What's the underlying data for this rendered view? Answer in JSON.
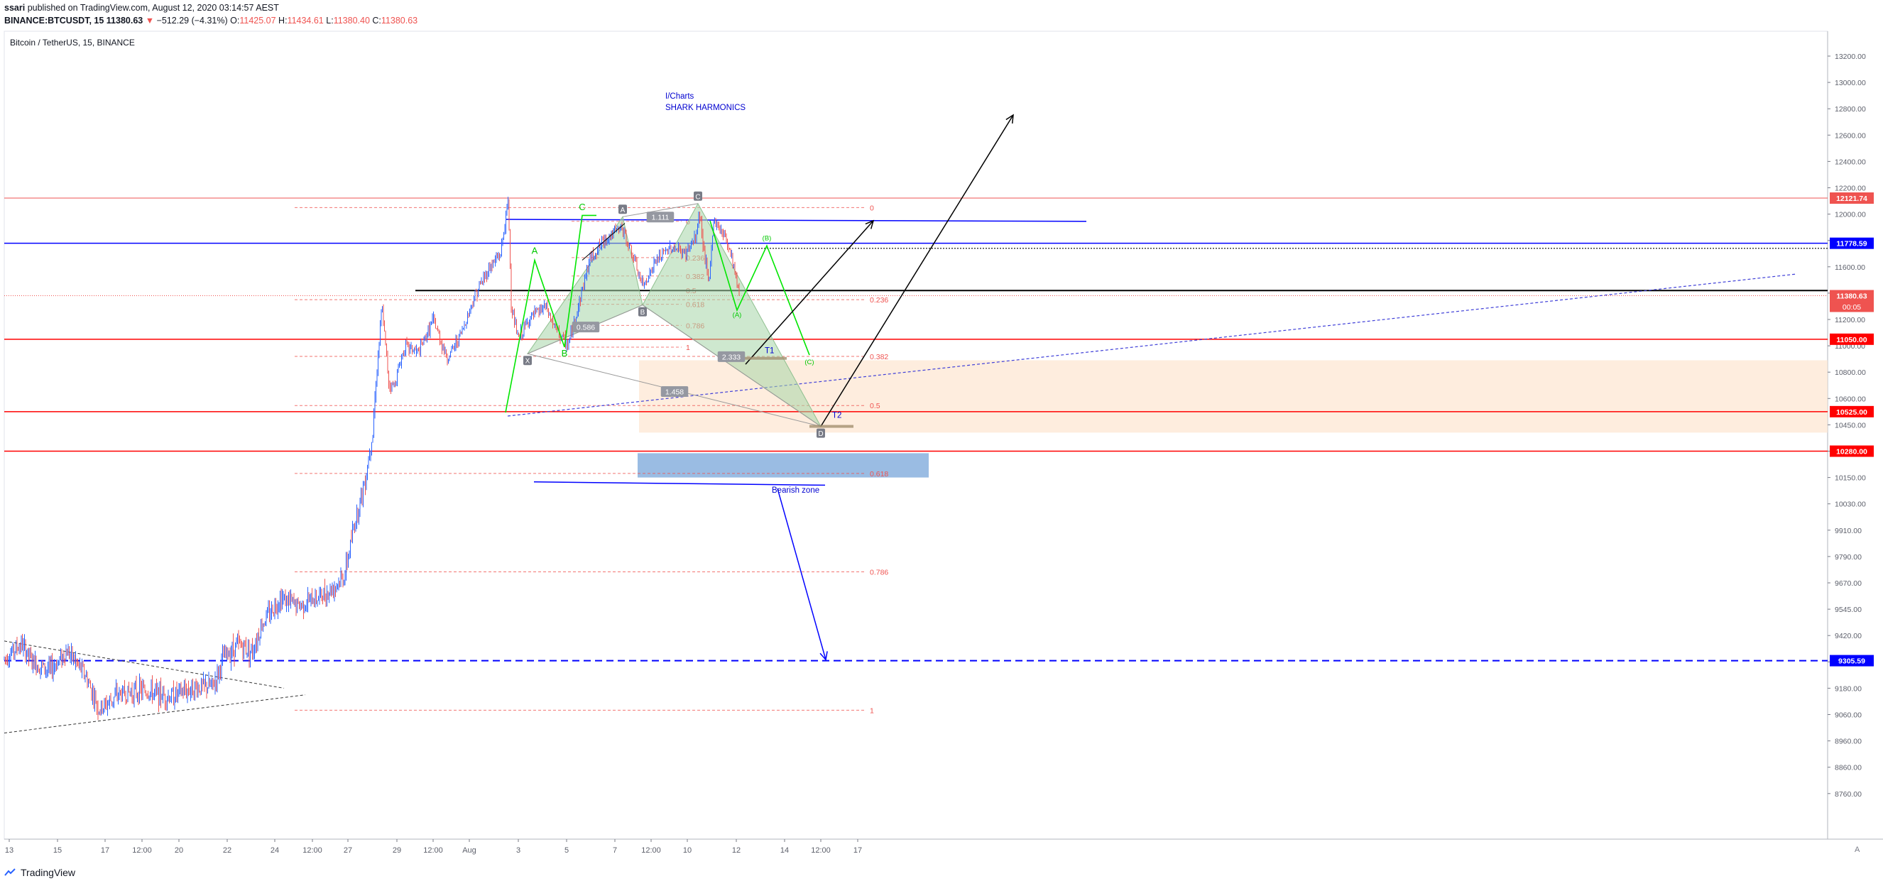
{
  "header": {
    "author": "ssari",
    "published": "published on TradingView.com, August 12, 2020 03:14:57 AEST",
    "symbol": "BINANCE:BTCUSDT, 15",
    "last": "11380.63",
    "change_arrow": "▼",
    "change": "−512.29 (−4.31%)",
    "o_label": "O:",
    "o": "11425.07",
    "h_label": "H:",
    "h": "11434.61",
    "l_label": "L:",
    "l": "11380.40",
    "c_label": "C:",
    "c": "11380.63"
  },
  "chart_title": "Bitcoin / TetherUS, 15, BINANCE",
  "brand": "TradingView",
  "corner_label": "A",
  "colors": {
    "up": "#2962ff",
    "down": "#ef5350",
    "pattern_fill": "#a5d6a7",
    "green_path": "#00e600",
    "fib": "#ef5350",
    "support": "#ff0000",
    "resist_blue": "#0000ff",
    "orange_zone": "#fde7d3",
    "blue_zone": "#8fb5e0"
  },
  "chart_data": {
    "type": "candlestick",
    "title": "Bitcoin / TetherUS, 15, BINANCE",
    "x_ticks": [
      "13",
      "15",
      "17",
      "12:00",
      "20",
      "22",
      "24",
      "12:00",
      "27",
      "29",
      "12:00",
      "Aug",
      "3",
      "5",
      "7",
      "12:00",
      "10",
      "12",
      "14",
      "12:00",
      "17"
    ],
    "y_ticks": [
      13200,
      13000,
      12800,
      12600,
      12400,
      12200,
      12000,
      11800,
      11600,
      11400,
      11200,
      11000,
      10800,
      10600,
      10450,
      10280,
      10150,
      10030,
      9910,
      9790,
      9670,
      9545,
      9420,
      9300,
      9180,
      9060,
      8960,
      8860,
      8760
    ],
    "y_tick_labels": [
      "13200.00",
      "13000.00",
      "12800.00",
      "12600.00",
      "12400.00",
      "12200.00",
      "12000.00",
      "11800.00",
      "11600.00",
      "11400.00",
      "11200.00",
      "11000.00",
      "10800.00",
      "10600.00",
      "10450.00",
      "10280.00",
      "10150.00",
      "10030.00",
      "9910.00",
      "9790.00",
      "9670.00",
      "9545.00",
      "9420.00",
      "9300.00",
      "9180.00",
      "9060.00",
      "8960.00",
      "8860.00",
      "8760.00"
    ],
    "price_anchors": [
      [
        0,
        9300
      ],
      [
        30,
        9380
      ],
      [
        45,
        9300
      ],
      [
        70,
        9260
      ],
      [
        95,
        9350
      ],
      [
        120,
        9240
      ],
      [
        140,
        9080
      ],
      [
        165,
        9150
      ],
      [
        200,
        9170
      ],
      [
        240,
        9140
      ],
      [
        270,
        9180
      ],
      [
        300,
        9190
      ],
      [
        315,
        9320
      ],
      [
        335,
        9380
      ],
      [
        355,
        9350
      ],
      [
        370,
        9480
      ],
      [
        395,
        9600
      ],
      [
        420,
        9560
      ],
      [
        460,
        9620
      ],
      [
        485,
        9700
      ],
      [
        500,
        9950
      ],
      [
        515,
        10150
      ],
      [
        525,
        10400
      ],
      [
        532,
        10900
      ],
      [
        538,
        11300
      ],
      [
        548,
        10700
      ],
      [
        555,
        10700
      ],
      [
        570,
        11000
      ],
      [
        590,
        10950
      ],
      [
        610,
        11200
      ],
      [
        630,
        10900
      ],
      [
        650,
        11100
      ],
      [
        670,
        11400
      ],
      [
        690,
        11600
      ],
      [
        705,
        11700
      ],
      [
        713,
        12000
      ],
      [
        716,
        12100
      ],
      [
        720,
        11300
      ],
      [
        730,
        11050
      ],
      [
        745,
        11200
      ],
      [
        768,
        11300
      ],
      [
        780,
        11150
      ],
      [
        800,
        11000
      ],
      [
        812,
        11250
      ],
      [
        830,
        11650
      ],
      [
        850,
        11800
      ],
      [
        875,
        11900
      ],
      [
        890,
        11700
      ],
      [
        905,
        11450
      ],
      [
        925,
        11650
      ],
      [
        945,
        11750
      ],
      [
        965,
        11700
      ],
      [
        980,
        11820
      ],
      [
        985,
        12020
      ],
      [
        998,
        11450
      ],
      [
        1005,
        11950
      ],
      [
        1020,
        11850
      ],
      [
        1030,
        11700
      ],
      [
        1042,
        11380
      ]
    ],
    "price_levels": [
      {
        "label": "12121.74",
        "value": 12121.74,
        "color": "#ef5350"
      },
      {
        "label": "11778.59",
        "value": 11778.59,
        "color": "#0000ff"
      },
      {
        "label": "11380.63",
        "value": 11380.63,
        "color": "#ef5350"
      },
      {
        "label": "11050.00",
        "value": 11050.0,
        "color": "#ff0000"
      },
      {
        "label": "10525.00",
        "value": 10525.0,
        "color": "#ff0000"
      },
      {
        "label": "10280.00",
        "value": 10280.0,
        "color": "#ff0000"
      },
      {
        "label": "9305.59",
        "value": 9305.59,
        "color": "#0000ff"
      }
    ],
    "countdown": "00:05",
    "fib_retracement": [
      {
        "label": "0",
        "value": 12050
      },
      {
        "label": "0.236",
        "value": 11350
      },
      {
        "label": "0.382",
        "value": 10920
      },
      {
        "label": "0.5",
        "value": 10560
      },
      {
        "label": "0.618",
        "value": 10170
      },
      {
        "label": "0.786",
        "value": 9720
      },
      {
        "label": "1",
        "value": 9080
      }
    ],
    "fib_inner": [
      {
        "label": "0",
        "value": 11945
      },
      {
        "label": "0.236",
        "value": 11670
      },
      {
        "label": "0.382",
        "value": 11530
      },
      {
        "label": "0.5",
        "value": 11420
      },
      {
        "label": "0.618",
        "value": 11315
      },
      {
        "label": "0.786",
        "value": 11155
      },
      {
        "label": "1",
        "value": 10990
      }
    ],
    "harmonic_points": [
      {
        "label": "X",
        "x": 743,
        "y": 10940
      },
      {
        "label": "A",
        "x": 877,
        "y": 11980
      },
      {
        "label": "B",
        "x": 905,
        "y": 11310
      },
      {
        "label": "C",
        "x": 983,
        "y": 12080
      },
      {
        "label": "D",
        "x": 1156,
        "y": 10440
      }
    ],
    "ratios": [
      {
        "label": "1.111",
        "x": 930,
        "y": 11975
      },
      {
        "label": "0.586",
        "x": 825,
        "y": 11140
      },
      {
        "label": "1.458",
        "x": 950,
        "y": 10650
      },
      {
        "label": "2.333",
        "x": 1030,
        "y": 10915
      }
    ],
    "wave_labels": [
      {
        "label": "A",
        "x": 753,
        "y": 11700
      },
      {
        "label": "B",
        "x": 795,
        "y": 10920
      },
      {
        "label": "C",
        "x": 820,
        "y": 12030
      },
      {
        "label": "(A)",
        "x": 1038,
        "y": 11220
      },
      {
        "label": "(B)",
        "x": 1080,
        "y": 11800
      },
      {
        "label": "(C)",
        "x": 1140,
        "y": 10860
      }
    ],
    "annotations": {
      "title1": "I/Charts",
      "title2": "SHARK HARMONICS",
      "t1": "T1",
      "t2": "T2",
      "bearish": "Bearish zone"
    }
  }
}
